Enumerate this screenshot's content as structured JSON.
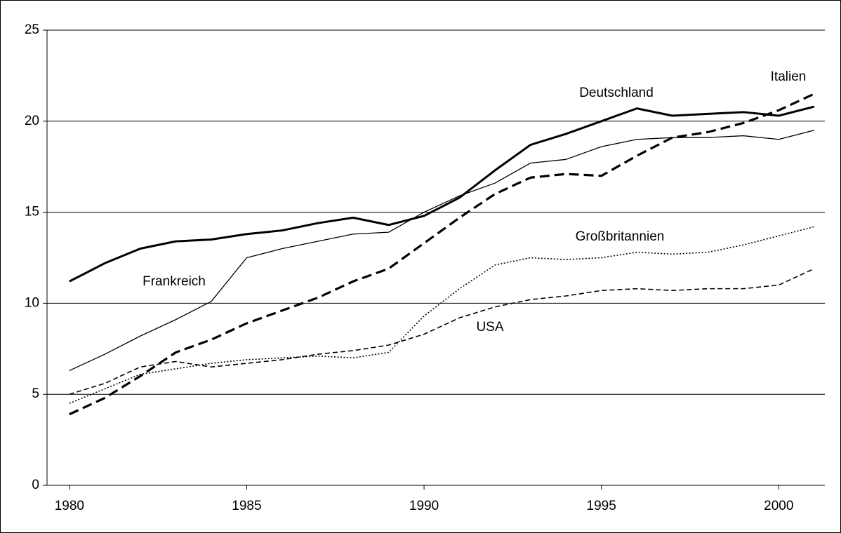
{
  "chart_data": {
    "type": "line",
    "x": [
      1980,
      1981,
      1982,
      1983,
      1984,
      1985,
      1986,
      1987,
      1988,
      1989,
      1990,
      1991,
      1992,
      1993,
      1994,
      1995,
      1996,
      1997,
      1998,
      1999,
      2000,
      2001
    ],
    "xlim": [
      1979.37,
      2001.3
    ],
    "xticks": [
      1980,
      1985,
      1990,
      1995,
      2000
    ],
    "ylim": [
      0,
      25
    ],
    "yticks": [
      0,
      5,
      10,
      15,
      20,
      25
    ],
    "grid": true,
    "series": [
      {
        "name": "Deutschland",
        "color": "#000000",
        "line_style": "solid-thick",
        "values": [
          11.2,
          12.2,
          13.0,
          13.4,
          13.5,
          13.8,
          14.0,
          14.4,
          14.7,
          14.3,
          14.8,
          15.8,
          17.3,
          18.7,
          19.3,
          20.0,
          20.7,
          20.3,
          20.4,
          20.5,
          20.3,
          20.8
        ]
      },
      {
        "name": "Frankreich",
        "color": "#000000",
        "line_style": "solid-thin",
        "values": [
          6.3,
          7.2,
          8.2,
          9.1,
          10.1,
          12.5,
          13.0,
          13.4,
          13.8,
          13.9,
          15.0,
          15.9,
          16.6,
          17.7,
          17.9,
          18.6,
          19.0,
          19.1,
          19.1,
          19.2,
          19.0,
          19.5
        ]
      },
      {
        "name": "Italien",
        "color": "#000000",
        "line_style": "dashed-thick",
        "values": [
          3.9,
          4.8,
          6.0,
          7.3,
          8.0,
          8.9,
          9.6,
          10.3,
          11.2,
          11.9,
          13.3,
          14.7,
          16.0,
          16.9,
          17.1,
          17.0,
          18.1,
          19.1,
          19.4,
          19.9,
          20.6,
          21.5
        ]
      },
      {
        "name": "Großbritannien",
        "color": "#000000",
        "line_style": "dotted",
        "values": [
          4.5,
          5.3,
          6.1,
          6.4,
          6.7,
          6.9,
          7.0,
          7.1,
          7.0,
          7.3,
          9.3,
          10.8,
          12.1,
          12.5,
          12.4,
          12.5,
          12.8,
          12.7,
          12.8,
          13.2,
          13.7,
          14.2
        ]
      },
      {
        "name": "USA",
        "color": "#000000",
        "line_style": "dashed-thin",
        "values": [
          5.0,
          5.6,
          6.5,
          6.8,
          6.5,
          6.7,
          6.9,
          7.2,
          7.4,
          7.7,
          8.3,
          9.2,
          9.8,
          10.2,
          10.4,
          10.7,
          10.8,
          10.7,
          10.8,
          10.8,
          11.0,
          11.9
        ]
      }
    ]
  }
}
